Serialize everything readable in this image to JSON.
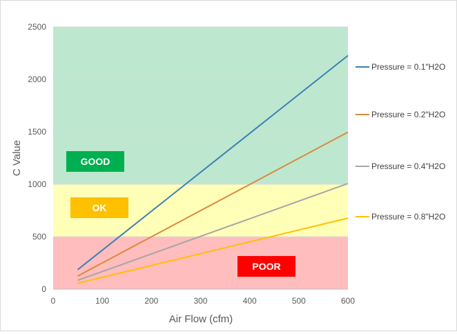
{
  "chart_data": {
    "type": "line",
    "xlabel": "Air Flow (cfm)",
    "ylabel": "C Value",
    "xlim": [
      0,
      600
    ],
    "ylim": [
      0,
      2500
    ],
    "x_ticks": [
      0,
      100,
      200,
      300,
      400,
      500,
      600
    ],
    "y_ticks": [
      0,
      500,
      1000,
      1500,
      2000,
      2500
    ],
    "grid": "horizontal",
    "legend_position": "right",
    "series": [
      {
        "name": "Pressure = 0.1\"H2O",
        "color": "#3d7fb5",
        "x": [
          50,
          600
        ],
        "y": [
          186,
          2227
        ]
      },
      {
        "name": "Pressure = 0.2\"H2O",
        "color": "#d98a3c",
        "x": [
          50,
          600
        ],
        "y": [
          125,
          1497
        ]
      },
      {
        "name": "Pressure = 0.4\"H2O",
        "color": "#a5a5a5",
        "x": [
          50,
          600
        ],
        "y": [
          84,
          1007
        ]
      },
      {
        "name": "Pressure = 0.8\"H2O",
        "color": "#ffc000",
        "x": [
          50,
          600
        ],
        "y": [
          56,
          677
        ]
      }
    ],
    "zones": [
      {
        "label": "GOOD",
        "y_from": 1000,
        "y_to": 2500,
        "fill": "#bde8cf",
        "label_color": "#00b050"
      },
      {
        "label": "OK",
        "y_from": 500,
        "y_to": 1000,
        "fill": "#ffffb8",
        "label_color": "#ffc000"
      },
      {
        "label": "POOR",
        "y_from": 0,
        "y_to": 500,
        "fill": "#ffbdbd",
        "label_color": "#ff0000"
      }
    ]
  }
}
